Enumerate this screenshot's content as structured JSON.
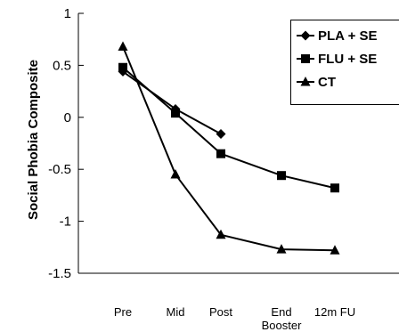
{
  "chart_data": {
    "type": "line",
    "ylabel": "Social Phobia Composite",
    "xlabel": "",
    "ylim": [
      -1.5,
      1
    ],
    "yticks": [
      1,
      0.5,
      0,
      -0.5,
      -1,
      -1.5
    ],
    "ytick_labels": [
      "1",
      "0.5",
      "0",
      "-0.5",
      "-1",
      "-1.5"
    ],
    "categories": [
      {
        "lines": [
          "Pre"
        ]
      },
      {
        "lines": [
          "Mid"
        ]
      },
      {
        "lines": [
          "Post"
        ]
      },
      {
        "lines": [
          "End",
          "Booster"
        ]
      },
      {
        "lines": [
          "12m FU"
        ]
      }
    ],
    "series": [
      {
        "name": "PLA + SE",
        "marker": "diamond",
        "values": [
          0.44,
          0.08,
          -0.16,
          null,
          null
        ]
      },
      {
        "name": "FLU + SE",
        "marker": "square",
        "values": [
          0.48,
          0.04,
          -0.35,
          -0.56,
          -0.68
        ]
      },
      {
        "name": "CT",
        "marker": "triangle",
        "values": [
          0.68,
          -0.55,
          -1.13,
          -1.27,
          -1.28
        ]
      }
    ],
    "legend": {
      "placement": "top-right"
    },
    "grid": false
  }
}
